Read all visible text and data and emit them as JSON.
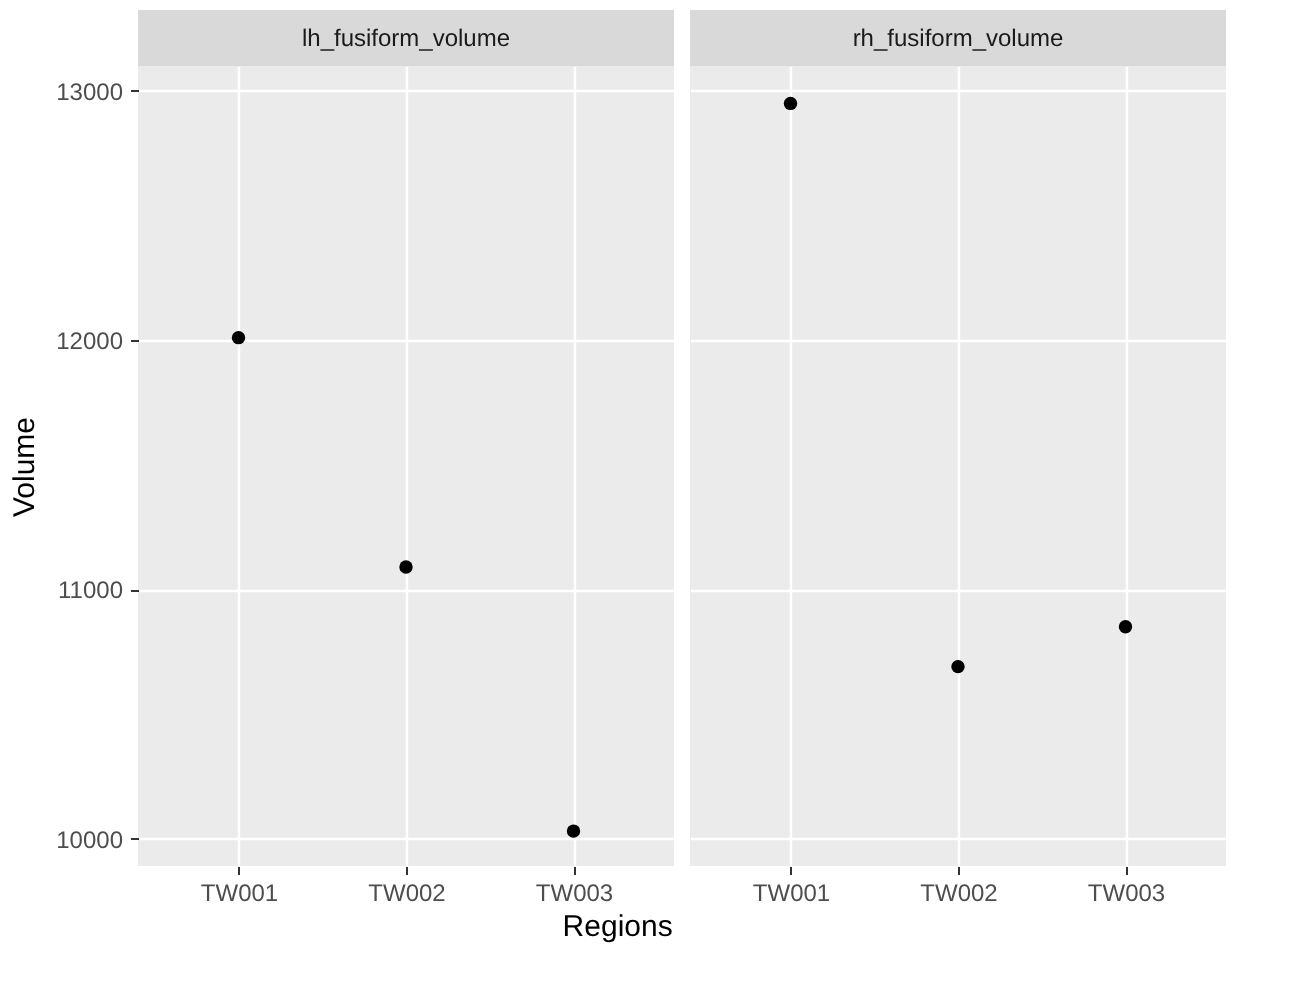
{
  "chart_data": [
    {
      "type": "scatter",
      "title": "lh_fusiform_volume",
      "xlabel": "Regions",
      "ylabel": "Volume",
      "categories": [
        "TW001",
        "TW002",
        "TW003"
      ],
      "series": [
        {
          "color": "#000000",
          "values": [
            12010,
            11090,
            10030
          ]
        }
      ],
      "ylim": [
        9890,
        13100
      ],
      "yticks": [
        10000,
        11000,
        12000,
        13000
      ],
      "grid": true,
      "marker": "circle"
    },
    {
      "type": "scatter",
      "title": "rh_fusiform_volume",
      "categories": [
        "TW001",
        "TW002",
        "TW003"
      ],
      "series": [
        {
          "color": "#000000",
          "values": [
            12950,
            10690,
            10850
          ]
        }
      ],
      "ylim": [
        9890,
        13100
      ],
      "yticks": [
        10000,
        11000,
        12000,
        13000
      ],
      "grid": true,
      "marker": "circle",
      "tick_labels": "x"
    }
  ]
}
